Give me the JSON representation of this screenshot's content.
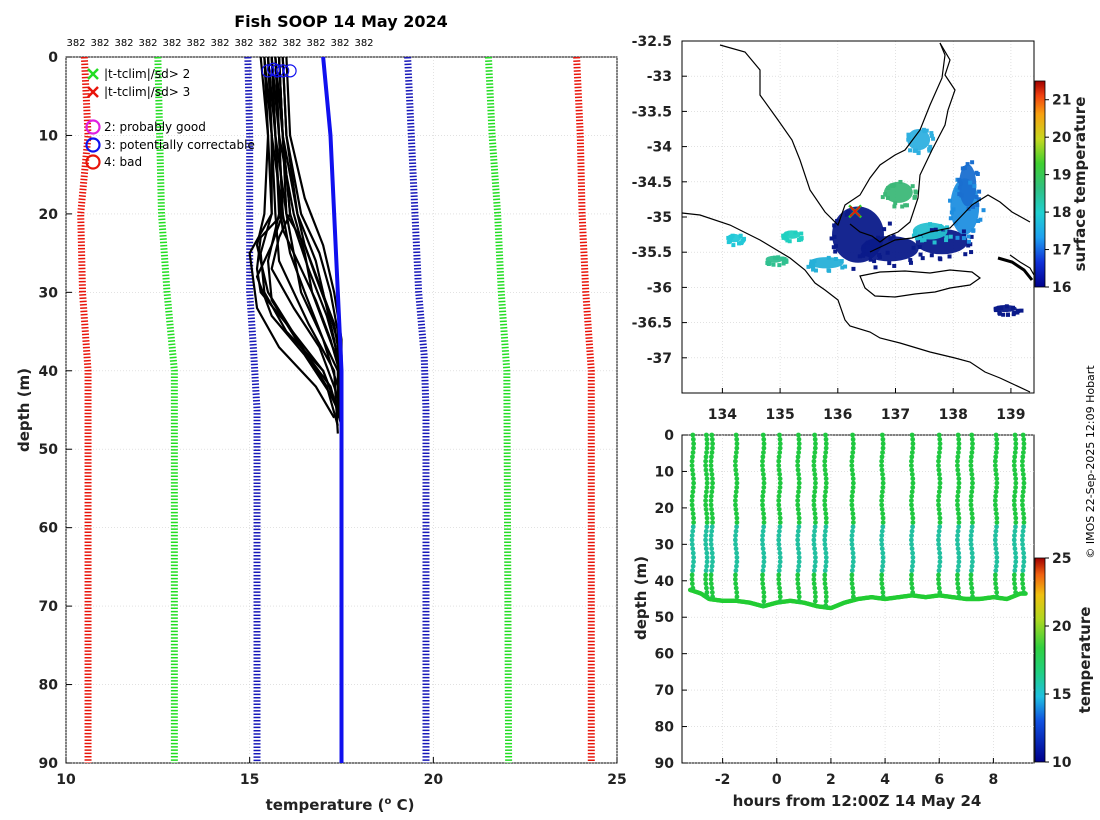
{
  "profile_chart": {
    "type": "line",
    "title": "Fish SOOP 14 May 2024",
    "xlabel_main": "temperature (",
    "xlabel_sup": "o",
    "xlabel_end": " C)",
    "ylabel": "depth (m)",
    "xlim": [
      10,
      25
    ],
    "ylim": [
      0,
      90
    ],
    "xticks": [
      "10",
      "15",
      "20",
      "25"
    ],
    "yticks": [
      "0",
      "10",
      "20",
      "30",
      "40",
      "50",
      "60",
      "70",
      "80",
      "90"
    ],
    "top_counts": [
      "382",
      "382",
      "382",
      "382",
      "382",
      "382",
      "382",
      "382",
      "382",
      "382",
      "382",
      "382",
      "382"
    ],
    "legend": {
      "flag_green": "|t-tclim|/sd> 2",
      "flag_red": "|t-tclim|/sd> 3",
      "good": "2: probably good",
      "correctable": "3: potentially correctable",
      "bad": "4: bad"
    },
    "colors": {
      "red": "#e8140a",
      "green": "#22dd22",
      "blue_dot": "#1818b8",
      "blue": "#1010ee",
      "profile": "#000000"
    },
    "clim_lines": [
      {
        "name": "red-left",
        "color": "#e8140a",
        "points": [
          [
            10.5,
            0
          ],
          [
            10.6,
            10
          ],
          [
            10.4,
            20
          ],
          [
            10.45,
            30
          ],
          [
            10.6,
            40
          ],
          [
            10.6,
            90
          ]
        ]
      },
      {
        "name": "green-left",
        "color": "#22dd22",
        "points": [
          [
            12.5,
            0
          ],
          [
            12.55,
            10
          ],
          [
            12.6,
            20
          ],
          [
            12.75,
            30
          ],
          [
            12.95,
            40
          ],
          [
            12.95,
            90
          ]
        ]
      },
      {
        "name": "blue-left",
        "color": "#1818b8",
        "points": [
          [
            14.95,
            0
          ],
          [
            15.0,
            10
          ],
          [
            15.0,
            20
          ],
          [
            15.0,
            30
          ],
          [
            15.1,
            37
          ],
          [
            15.2,
            45
          ],
          [
            15.2,
            90
          ]
        ]
      },
      {
        "name": "blue-right",
        "color": "#1818b8",
        "points": [
          [
            19.3,
            0
          ],
          [
            19.4,
            10
          ],
          [
            19.5,
            20
          ],
          [
            19.6,
            30
          ],
          [
            19.75,
            38
          ],
          [
            19.8,
            45
          ],
          [
            19.8,
            90
          ]
        ]
      },
      {
        "name": "green-right",
        "color": "#22dd22",
        "points": [
          [
            21.5,
            0
          ],
          [
            21.6,
            10
          ],
          [
            21.75,
            20
          ],
          [
            21.85,
            30
          ],
          [
            22.0,
            40
          ],
          [
            22.05,
            90
          ]
        ]
      },
      {
        "name": "red-right",
        "color": "#e8140a",
        "points": [
          [
            23.9,
            0
          ],
          [
            24.0,
            10
          ],
          [
            24.05,
            20
          ],
          [
            24.15,
            30
          ],
          [
            24.3,
            40
          ],
          [
            24.3,
            90
          ]
        ]
      }
    ],
    "mean_profile": [
      [
        17.0,
        0
      ],
      [
        17.2,
        10
      ],
      [
        17.3,
        20
      ],
      [
        17.4,
        30
      ],
      [
        17.5,
        40
      ],
      [
        17.5,
        48
      ],
      [
        17.5,
        90
      ]
    ],
    "flag_markers": [
      [
        15.5,
        1
      ],
      [
        15.65,
        0.8
      ],
      [
        15.75,
        1
      ],
      [
        15.9,
        1
      ],
      [
        16.1,
        1
      ]
    ],
    "profiles": [
      [
        [
          15.4,
          0
        ],
        [
          15.6,
          10
        ],
        [
          15.6,
          20
        ],
        [
          15.3,
          25
        ],
        [
          15.4,
          30
        ],
        [
          16.0,
          35
        ],
        [
          17.0,
          40
        ],
        [
          17.5,
          46
        ]
      ],
      [
        [
          15.5,
          0
        ],
        [
          15.7,
          10
        ],
        [
          15.8,
          20
        ],
        [
          15.5,
          26
        ],
        [
          15.6,
          31
        ],
        [
          16.4,
          37
        ],
        [
          17.2,
          42
        ],
        [
          17.5,
          47
        ]
      ],
      [
        [
          15.6,
          0
        ],
        [
          15.7,
          10
        ],
        [
          16.0,
          20
        ],
        [
          16.2,
          25
        ],
        [
          16.4,
          30
        ],
        [
          16.9,
          35
        ],
        [
          17.4,
          40
        ],
        [
          17.4,
          45
        ]
      ],
      [
        [
          15.7,
          0
        ],
        [
          15.8,
          10
        ],
        [
          16.2,
          20
        ],
        [
          16.5,
          25
        ],
        [
          16.7,
          30
        ],
        [
          17.1,
          35
        ],
        [
          17.5,
          40
        ],
        [
          17.4,
          46
        ]
      ],
      [
        [
          15.8,
          0
        ],
        [
          15.9,
          10
        ],
        [
          16.3,
          20
        ],
        [
          16.8,
          26
        ],
        [
          17.0,
          30
        ],
        [
          17.3,
          36
        ],
        [
          17.5,
          42
        ],
        [
          17.5,
          47
        ]
      ],
      [
        [
          15.9,
          0
        ],
        [
          16.0,
          10
        ],
        [
          16.4,
          20
        ],
        [
          16.9,
          25
        ],
        [
          17.2,
          30
        ],
        [
          17.4,
          35
        ],
        [
          17.5,
          44
        ]
      ],
      [
        [
          15.5,
          0
        ],
        [
          15.6,
          10
        ],
        [
          15.9,
          20
        ],
        [
          15.6,
          24
        ],
        [
          15.2,
          28
        ],
        [
          15.6,
          33
        ],
        [
          16.5,
          38
        ],
        [
          17.2,
          43
        ],
        [
          17.5,
          46
        ]
      ],
      [
        [
          15.6,
          0
        ],
        [
          15.8,
          10
        ],
        [
          15.9,
          20
        ],
        [
          15.3,
          23
        ],
        [
          15.2,
          27
        ],
        [
          15.3,
          30
        ],
        [
          16.0,
          34
        ],
        [
          17.0,
          40
        ],
        [
          17.4,
          45
        ]
      ],
      [
        [
          15.7,
          0
        ],
        [
          15.9,
          10
        ],
        [
          16.1,
          20
        ],
        [
          15.8,
          23
        ],
        [
          15.6,
          27
        ],
        [
          16.2,
          32
        ],
        [
          16.9,
          37
        ],
        [
          17.3,
          42
        ],
        [
          17.5,
          45
        ]
      ],
      [
        [
          15.8,
          0
        ],
        [
          15.9,
          10
        ],
        [
          16.0,
          20
        ],
        [
          16.5,
          24
        ],
        [
          16.8,
          28
        ],
        [
          17.2,
          33
        ],
        [
          17.5,
          38
        ],
        [
          17.5,
          44
        ]
      ],
      [
        [
          16.0,
          0
        ],
        [
          16.1,
          10
        ],
        [
          16.5,
          18
        ],
        [
          17.0,
          24
        ],
        [
          17.3,
          30
        ],
        [
          17.5,
          36
        ],
        [
          17.5,
          42
        ]
      ],
      [
        [
          15.4,
          0
        ],
        [
          15.5,
          10
        ],
        [
          15.4,
          20
        ],
        [
          15.2,
          24
        ],
        [
          15.5,
          30
        ],
        [
          16.3,
          36
        ],
        [
          17.1,
          42
        ],
        [
          17.4,
          47
        ]
      ],
      [
        [
          15.6,
          0
        ],
        [
          15.7,
          10
        ],
        [
          15.8,
          18
        ],
        [
          15.9,
          22
        ],
        [
          16.3,
          26
        ],
        [
          16.8,
          31
        ],
        [
          17.2,
          36
        ],
        [
          17.5,
          41
        ]
      ],
      [
        [
          15.5,
          0
        ],
        [
          15.6,
          10
        ],
        [
          15.7,
          20
        ],
        [
          15.8,
          26
        ],
        [
          16.6,
          34
        ],
        [
          17.3,
          40
        ],
        [
          17.4,
          48
        ]
      ],
      [
        [
          15.9,
          0
        ],
        [
          16.0,
          10
        ],
        [
          16.3,
          20
        ],
        [
          16.5,
          24
        ],
        [
          16.9,
          29
        ],
        [
          17.3,
          34
        ],
        [
          17.5,
          40
        ]
      ],
      [
        [
          15.3,
          0
        ],
        [
          15.5,
          10
        ],
        [
          15.6,
          20
        ],
        [
          15.0,
          25
        ],
        [
          15.2,
          32
        ],
        [
          15.8,
          37
        ],
        [
          16.8,
          42
        ],
        [
          17.3,
          46
        ]
      ],
      [
        [
          15.8,
          0
        ],
        [
          15.9,
          10
        ],
        [
          16.1,
          20
        ],
        [
          16.6,
          27
        ],
        [
          17.1,
          33
        ],
        [
          17.4,
          38
        ],
        [
          17.5,
          45
        ]
      ],
      [
        [
          15.7,
          0
        ],
        [
          15.8,
          10
        ],
        [
          15.9,
          20
        ],
        [
          16.1,
          25
        ],
        [
          16.5,
          30
        ],
        [
          17.0,
          36
        ],
        [
          17.4,
          42
        ],
        [
          17.5,
          46
        ]
      ]
    ]
  },
  "map_chart": {
    "type": "heatmap",
    "xticks": [
      "134",
      "135",
      "136",
      "137",
      "138",
      "139"
    ],
    "yticks": [
      "-32.5",
      "-33",
      "-33.5",
      "-34",
      "-34.5",
      "-35",
      "-35.5",
      "-36",
      "-36.5",
      "-37"
    ],
    "lon_range": [
      133.3,
      139.4
    ],
    "lat_range": [
      -37.5,
      -32.5
    ],
    "colorbar": {
      "label": "surface temperature",
      "ticks": [
        "16",
        "17",
        "18",
        "19",
        "20",
        "21"
      ],
      "range": [
        16,
        21.5
      ]
    },
    "station_lon": 136.3,
    "station_lat": -34.92,
    "patches": [
      {
        "lon": 136.35,
        "lat": -35.25,
        "rlon": 0.45,
        "rlat": 0.4,
        "color": "#0a1a8a"
      },
      {
        "lon": 136.9,
        "lat": -35.45,
        "rlon": 0.5,
        "rlat": 0.18,
        "color": "#0a1a8a"
      },
      {
        "lon": 137.8,
        "lat": -35.35,
        "rlon": 0.45,
        "rlat": 0.18,
        "color": "#0a1a8a"
      },
      {
        "lon": 138.2,
        "lat": -34.85,
        "rlon": 0.25,
        "rlat": 0.4,
        "color": "#1f8fe0"
      },
      {
        "lon": 138.25,
        "lat": -34.55,
        "rlon": 0.15,
        "rlat": 0.3,
        "color": "#1a6fd0"
      },
      {
        "lon": 137.05,
        "lat": -34.65,
        "rlon": 0.25,
        "rlat": 0.15,
        "color": "#3cb878"
      },
      {
        "lon": 137.6,
        "lat": -35.2,
        "rlon": 0.3,
        "rlat": 0.12,
        "color": "#26c0d0"
      },
      {
        "lon": 137.4,
        "lat": -33.9,
        "rlon": 0.2,
        "rlat": 0.15,
        "color": "#2fb0e0"
      },
      {
        "lon": 135.8,
        "lat": -35.65,
        "rlon": 0.3,
        "rlat": 0.08,
        "color": "#26b0d8"
      },
      {
        "lon": 134.2,
        "lat": -35.3,
        "rlon": 0.12,
        "rlat": 0.06,
        "color": "#22c8d8"
      },
      {
        "lon": 135.2,
        "lat": -35.25,
        "rlon": 0.15,
        "rlat": 0.06,
        "color": "#20d0c0"
      },
      {
        "lon": 134.9,
        "lat": -35.6,
        "rlon": 0.15,
        "rlat": 0.05,
        "color": "#30c090"
      },
      {
        "lon": 138.9,
        "lat": -36.3,
        "rlon": 0.2,
        "rlat": 0.05,
        "color": "#0a1a8a"
      }
    ]
  },
  "timeseries_chart": {
    "type": "scatter",
    "xlabel": "hours from 12:00Z 14 May 24",
    "ylabel": "depth (m)",
    "xlim": [
      -3.5,
      9.5
    ],
    "ylim": [
      0,
      90
    ],
    "xticks": [
      "-2",
      "0",
      "2",
      "4",
      "6",
      "8"
    ],
    "yticks": [
      "0",
      "10",
      "20",
      "30",
      "40",
      "50",
      "60",
      "70",
      "80",
      "90"
    ],
    "colorbar": {
      "label": "temperature",
      "ticks": [
        "10",
        "15",
        "20",
        "25"
      ],
      "range": [
        10,
        25
      ]
    },
    "casts": [
      -3.1,
      -2.6,
      -2.4,
      -1.5,
      -0.5,
      0.1,
      0.8,
      1.4,
      1.8,
      2.8,
      3.9,
      5.0,
      6.0,
      6.7,
      7.2,
      8.1,
      8.8,
      9.1
    ],
    "bottom": [
      [
        -3.2,
        42.5
      ],
      [
        -2.8,
        43.5
      ],
      [
        -2.5,
        45
      ],
      [
        -2.0,
        45.5
      ],
      [
        -1.5,
        45.5
      ],
      [
        -1.0,
        46
      ],
      [
        -0.5,
        47
      ],
      [
        0.0,
        46
      ],
      [
        0.5,
        45.5
      ],
      [
        1.0,
        46
      ],
      [
        1.5,
        47
      ],
      [
        2.0,
        47.5
      ],
      [
        2.5,
        46
      ],
      [
        3.0,
        45
      ],
      [
        3.5,
        44.5
      ],
      [
        4.0,
        45
      ],
      [
        4.5,
        44.5
      ],
      [
        5.0,
        44
      ],
      [
        5.5,
        44.5
      ],
      [
        6.0,
        44
      ],
      [
        6.5,
        44.5
      ],
      [
        7.0,
        45
      ],
      [
        7.5,
        45
      ],
      [
        8.0,
        44.5
      ],
      [
        8.5,
        45
      ],
      [
        9.0,
        43.5
      ],
      [
        9.2,
        43.5
      ]
    ]
  },
  "credit": "© IMOS 22-Sep-2025 12:09 Hobart"
}
